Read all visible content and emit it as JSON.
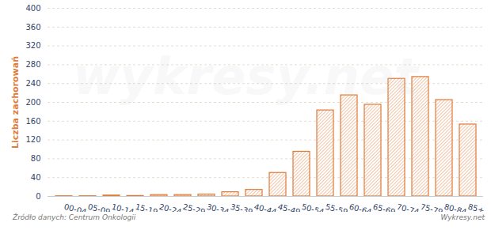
{
  "chart_data": {
    "type": "bar",
    "categories": [
      "00-04",
      "05-09",
      "10-14",
      "15-19",
      "20-24",
      "25-29",
      "30-34",
      "35-39",
      "40-44",
      "45-49",
      "50-54",
      "55-59",
      "60-64",
      "65-69",
      "70-74",
      "75-79",
      "80-84",
      "85+"
    ],
    "values": [
      0.5,
      0.5,
      2,
      1,
      3,
      3,
      4,
      9,
      14,
      50,
      95,
      183,
      215,
      195,
      250,
      254,
      205,
      153
    ],
    "y_label": "Liczba zachorowań",
    "source": "Źródło danych: Centrum Onkologii",
    "credit": "Wykresy.net",
    "annotations": [
      "wykresy.net"
    ],
    "color": "#e07b39",
    "ylim": [
      0,
      400
    ],
    "yticks": [
      0,
      40,
      80,
      120,
      160,
      200,
      240,
      280,
      320,
      360,
      400
    ],
    "grid": true
  }
}
